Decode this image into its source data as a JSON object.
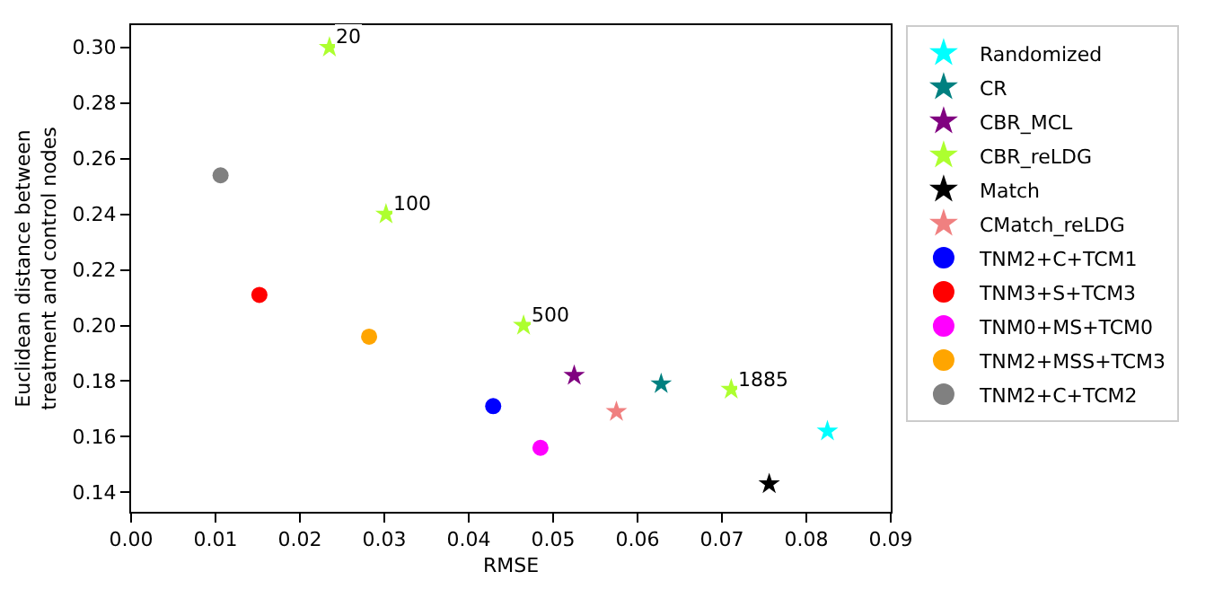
{
  "chart_data": {
    "type": "scatter",
    "xlabel": "RMSE",
    "ylabel": "Euclidean distance between\ntreatment and control nodes",
    "xlim": [
      0,
      0.09
    ],
    "ylim": [
      0.133,
      0.308
    ],
    "xticks": [
      {
        "value": 0,
        "label": "0.00"
      },
      {
        "value": 0.01,
        "label": "0.01"
      },
      {
        "value": 0.02,
        "label": "0.02"
      },
      {
        "value": 0.03,
        "label": "0.03"
      },
      {
        "value": 0.04,
        "label": "0.04"
      },
      {
        "value": 0.05,
        "label": "0.05"
      },
      {
        "value": 0.06,
        "label": "0.06"
      },
      {
        "value": 0.07,
        "label": "0.07"
      },
      {
        "value": 0.08,
        "label": "0.08"
      },
      {
        "value": 0.09,
        "label": "0.09"
      }
    ],
    "yticks": [
      {
        "value": 0.14,
        "label": "0.14"
      },
      {
        "value": 0.16,
        "label": "0.16"
      },
      {
        "value": 0.18,
        "label": "0.18"
      },
      {
        "value": 0.2,
        "label": "0.20"
      },
      {
        "value": 0.22,
        "label": "0.22"
      },
      {
        "value": 0.24,
        "label": "0.24"
      },
      {
        "value": 0.26,
        "label": "0.26"
      },
      {
        "value": 0.28,
        "label": "0.28"
      },
      {
        "value": 0.3,
        "label": "0.30"
      }
    ],
    "annotations": [
      {
        "text": "20",
        "x": 0.0235,
        "y": 0.3
      },
      {
        "text": "100",
        "x": 0.0302,
        "y": 0.24
      },
      {
        "text": "500",
        "x": 0.0465,
        "y": 0.2
      },
      {
        "text": "1885",
        "x": 0.0711,
        "y": 0.177
      }
    ],
    "legend": "right",
    "series": [
      {
        "name": "Randomized",
        "color": "#00ffff",
        "marker": "star",
        "x": [
          0.0825
        ],
        "values": [
          0.162
        ]
      },
      {
        "name": "CR",
        "color": "#008080",
        "marker": "star",
        "x": [
          0.0628
        ],
        "values": [
          0.179
        ]
      },
      {
        "name": "CBR_MCL",
        "color": "#800080",
        "marker": "star",
        "x": [
          0.0525
        ],
        "values": [
          0.182
        ]
      },
      {
        "name": "CBR_reLDG",
        "color": "#adff2f",
        "marker": "star",
        "x": [
          0.0235,
          0.0302,
          0.0465,
          0.0711
        ],
        "values": [
          0.3,
          0.24,
          0.2,
          0.177
        ]
      },
      {
        "name": "Match",
        "color": "#000000",
        "marker": "star",
        "x": [
          0.0756
        ],
        "values": [
          0.143
        ]
      },
      {
        "name": "CMatch_reLDG",
        "color": "#f08080",
        "marker": "star",
        "x": [
          0.0575
        ],
        "values": [
          0.169
        ]
      },
      {
        "name": "TNM2+C+TCM1",
        "color": "#0000ff",
        "marker": "circle",
        "x": [
          0.0429
        ],
        "values": [
          0.171
        ]
      },
      {
        "name": "TNM3+S+TCM3",
        "color": "#ff0000",
        "marker": "circle",
        "x": [
          0.0152
        ],
        "values": [
          0.211
        ]
      },
      {
        "name": "TNM0+MS+TCM0",
        "color": "#ff00ff",
        "marker": "circle",
        "x": [
          0.0485
        ],
        "values": [
          0.156
        ]
      },
      {
        "name": "TNM2+MSS+TCM3",
        "color": "#ffa500",
        "marker": "circle",
        "x": [
          0.0282
        ],
        "values": [
          0.196
        ]
      },
      {
        "name": "TNM2+C+TCM2",
        "color": "#808080",
        "marker": "circle",
        "x": [
          0.0106
        ],
        "values": [
          0.254
        ]
      }
    ]
  }
}
